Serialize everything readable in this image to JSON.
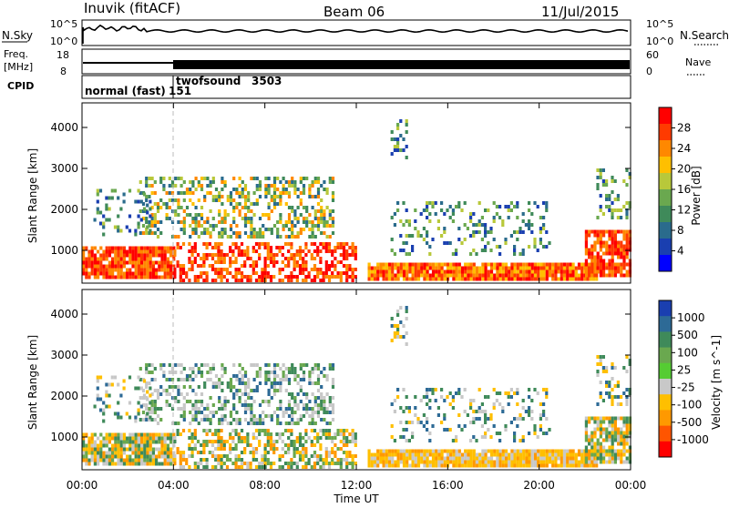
{
  "header": {
    "station": "Inuvik (fitACF)",
    "beam": "Beam 06",
    "date": "11/Jul/2015"
  },
  "noise_panel": {
    "left_label": "N.Sky",
    "right_label": "N.Search",
    "left_ticks": [
      "10^5",
      "10^0"
    ],
    "right_ticks": [
      "10^5",
      "10^0"
    ]
  },
  "freq_panel": {
    "left_label_1": "Freq.",
    "left_label_2": "[MHz]",
    "right_label": "Nave",
    "left_ticks": [
      "18",
      "8"
    ],
    "right_ticks": [
      "60",
      "0"
    ]
  },
  "cpid": {
    "label": "CPID",
    "segments": [
      {
        "name": "normal (fast)",
        "id": "151",
        "start": "00:00",
        "end": "04:00"
      },
      {
        "name": "twofsound",
        "id": "3503",
        "start": "04:00",
        "end": "00:00"
      }
    ]
  },
  "time_axis": {
    "label": "Time UT",
    "ticks": [
      "00:00",
      "04:00",
      "08:00",
      "12:00",
      "16:00",
      "20:00",
      "00:00"
    ]
  },
  "chart_data": [
    {
      "type": "heatmap",
      "ylabel": "Slant Range [km]",
      "yticks": [
        1000,
        2000,
        3000,
        4000
      ],
      "ylim": [
        200,
        4600
      ],
      "xlim_hours": [
        0,
        24
      ],
      "colorbar": {
        "label": "Power [dB]",
        "ticks": [
          "28",
          "24",
          "20",
          "16",
          "12",
          "8",
          "4"
        ],
        "colors": [
          "#ff0000",
          "#ff3a00",
          "#ff8800",
          "#ffbf00",
          "#b8c83a",
          "#6aa84f",
          "#3f8a5a",
          "#2a6b8c",
          "#1a3fb0",
          "#0000ff"
        ]
      }
    },
    {
      "type": "heatmap",
      "ylabel": "Slant Range [km]",
      "yticks": [
        1000,
        2000,
        3000,
        4000
      ],
      "ylim": [
        200,
        4600
      ],
      "xlim_hours": [
        0,
        24
      ],
      "colorbar": {
        "label": "Velocity [m s^-1]",
        "ticks": [
          "1000",
          "500",
          "100",
          "25",
          "-25",
          "-100",
          "-500",
          "-1000"
        ],
        "colors": [
          "#1a3fb0",
          "#2d6a96",
          "#3f8a5a",
          "#6aa84f",
          "#55cc33",
          "#c8c8c8",
          "#ffbf00",
          "#ff9900",
          "#ff5500",
          "#ff0000"
        ]
      }
    }
  ]
}
